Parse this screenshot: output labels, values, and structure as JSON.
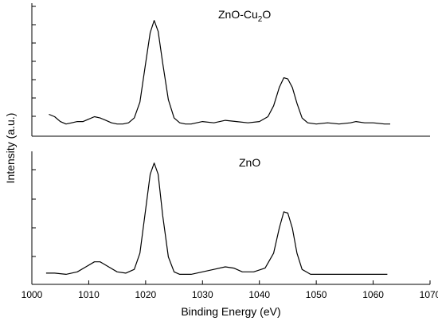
{
  "chart_data": {
    "type": "line",
    "xlabel": "Binding Energy (eV)",
    "ylabel": "Intensity (a.u.)",
    "xlim": [
      1000,
      1070
    ],
    "x_ticks": [
      "1000",
      "1010",
      "1020",
      "1030",
      "1040",
      "1050",
      "1060",
      "1070"
    ],
    "y_ticks_shown": false,
    "panels": [
      {
        "title_main": "ZnO-Cu",
        "title_sub": "2",
        "title_tail": "O",
        "ylim": [
          0,
          1
        ],
        "points": [
          [
            1003.0,
            0.18
          ],
          [
            1004.0,
            0.16
          ],
          [
            1005.0,
            0.12
          ],
          [
            1006.0,
            0.1
          ],
          [
            1007.0,
            0.11
          ],
          [
            1008.0,
            0.12
          ],
          [
            1009.0,
            0.12
          ],
          [
            1010.0,
            0.14
          ],
          [
            1011.0,
            0.16
          ],
          [
            1012.0,
            0.15
          ],
          [
            1013.0,
            0.13
          ],
          [
            1014.0,
            0.11
          ],
          [
            1015.0,
            0.1
          ],
          [
            1016.0,
            0.1
          ],
          [
            1017.0,
            0.11
          ],
          [
            1018.0,
            0.15
          ],
          [
            1019.0,
            0.28
          ],
          [
            1020.0,
            0.6
          ],
          [
            1020.8,
            0.85
          ],
          [
            1021.5,
            0.95
          ],
          [
            1022.2,
            0.86
          ],
          [
            1023.0,
            0.6
          ],
          [
            1024.0,
            0.3
          ],
          [
            1025.0,
            0.15
          ],
          [
            1026.0,
            0.11
          ],
          [
            1027.0,
            0.1
          ],
          [
            1028.0,
            0.1
          ],
          [
            1030.0,
            0.12
          ],
          [
            1032.0,
            0.11
          ],
          [
            1034.0,
            0.13
          ],
          [
            1036.0,
            0.12
          ],
          [
            1038.0,
            0.11
          ],
          [
            1040.0,
            0.12
          ],
          [
            1041.5,
            0.16
          ],
          [
            1042.5,
            0.25
          ],
          [
            1043.5,
            0.4
          ],
          [
            1044.3,
            0.48
          ],
          [
            1045.0,
            0.47
          ],
          [
            1045.8,
            0.4
          ],
          [
            1046.6,
            0.27
          ],
          [
            1047.5,
            0.15
          ],
          [
            1048.5,
            0.11
          ],
          [
            1050.0,
            0.1
          ],
          [
            1052.0,
            0.11
          ],
          [
            1054.0,
            0.1
          ],
          [
            1056.0,
            0.11
          ],
          [
            1057.0,
            0.12
          ],
          [
            1058.5,
            0.11
          ],
          [
            1060.0,
            0.11
          ],
          [
            1062.0,
            0.1
          ],
          [
            1063.0,
            0.1
          ]
        ]
      },
      {
        "title_main": "ZnO",
        "title_sub": "",
        "title_tail": "",
        "ylim": [
          0,
          1
        ],
        "points": [
          [
            1002.5,
            0.09
          ],
          [
            1004.0,
            0.09
          ],
          [
            1006.0,
            0.08
          ],
          [
            1008.0,
            0.1
          ],
          [
            1009.5,
            0.14
          ],
          [
            1011.0,
            0.18
          ],
          [
            1012.0,
            0.18
          ],
          [
            1013.5,
            0.14
          ],
          [
            1015.0,
            0.1
          ],
          [
            1016.5,
            0.09
          ],
          [
            1018.0,
            0.12
          ],
          [
            1019.0,
            0.25
          ],
          [
            1020.0,
            0.6
          ],
          [
            1020.8,
            0.88
          ],
          [
            1021.5,
            0.97
          ],
          [
            1022.2,
            0.88
          ],
          [
            1023.0,
            0.55
          ],
          [
            1024.0,
            0.22
          ],
          [
            1025.0,
            0.1
          ],
          [
            1026.0,
            0.08
          ],
          [
            1028.0,
            0.08
          ],
          [
            1030.0,
            0.1
          ],
          [
            1032.0,
            0.12
          ],
          [
            1034.0,
            0.14
          ],
          [
            1035.5,
            0.13
          ],
          [
            1037.0,
            0.1
          ],
          [
            1039.0,
            0.1
          ],
          [
            1041.0,
            0.13
          ],
          [
            1042.5,
            0.25
          ],
          [
            1043.5,
            0.45
          ],
          [
            1044.3,
            0.58
          ],
          [
            1045.0,
            0.57
          ],
          [
            1045.8,
            0.45
          ],
          [
            1046.6,
            0.25
          ],
          [
            1047.5,
            0.12
          ],
          [
            1049.0,
            0.08
          ],
          [
            1052.0,
            0.08
          ],
          [
            1055.0,
            0.08
          ],
          [
            1058.0,
            0.08
          ],
          [
            1060.0,
            0.08
          ],
          [
            1062.5,
            0.08
          ]
        ]
      }
    ]
  }
}
